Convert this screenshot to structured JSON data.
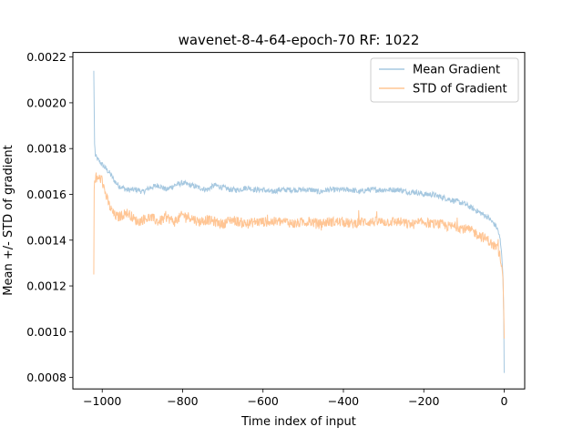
{
  "chart_data": {
    "type": "line",
    "title": "wavenet-8-4-64-epoch-70 RF: 1022",
    "xlabel": "Time index of input",
    "ylabel": "Mean +/- STD of gradient",
    "xlim": [
      -1073,
      51
    ],
    "ylim": [
      0.00075,
      0.00222
    ],
    "xticks": [
      -1000,
      -800,
      -600,
      -400,
      -200,
      0
    ],
    "xtick_labels": [
      "−1000",
      "−800",
      "−600",
      "−400",
      "−200",
      "0"
    ],
    "yticks": [
      0.0008,
      0.001,
      0.0012,
      0.0014,
      0.0016,
      0.0018,
      0.002,
      0.0022
    ],
    "ytick_labels": [
      "0.0008",
      "0.0010",
      "0.0012",
      "0.0014",
      "0.0016",
      "0.0018",
      "0.0020",
      "0.0022"
    ],
    "grid": false,
    "legend_position": "top-right",
    "series": [
      {
        "name": "Mean Gradient",
        "color": "#a6c8e0",
        "x": [
          -1021,
          -1019,
          -1017,
          -1014,
          -1010,
          -1005,
          -1000,
          -990,
          -980,
          -970,
          -960,
          -950,
          -940,
          -930,
          -920,
          -910,
          -900,
          -880,
          -860,
          -840,
          -820,
          -800,
          -780,
          -760,
          -740,
          -720,
          -700,
          -680,
          -660,
          -640,
          -620,
          -600,
          -580,
          -560,
          -540,
          -520,
          -500,
          -480,
          -460,
          -440,
          -420,
          -400,
          -380,
          -360,
          -340,
          -320,
          -300,
          -280,
          -260,
          -240,
          -220,
          -200,
          -180,
          -160,
          -140,
          -120,
          -100,
          -80,
          -60,
          -40,
          -30,
          -20,
          -15,
          -10,
          -6,
          -3,
          -1,
          0
        ],
        "y": [
          0.00214,
          0.00182,
          0.00177,
          0.00176,
          0.00175,
          0.00174,
          0.00173,
          0.00171,
          0.00169,
          0.00166,
          0.00164,
          0.00163,
          0.00162,
          0.00162,
          0.00162,
          0.00162,
          0.00161,
          0.00163,
          0.00164,
          0.00162,
          0.00164,
          0.00165,
          0.00164,
          0.00163,
          0.00162,
          0.00164,
          0.00163,
          0.00162,
          0.00162,
          0.00163,
          0.00162,
          0.00162,
          0.00161,
          0.00162,
          0.00162,
          0.00162,
          0.00162,
          0.00162,
          0.00161,
          0.00162,
          0.00162,
          0.00162,
          0.00162,
          0.00161,
          0.00162,
          0.00162,
          0.00162,
          0.00162,
          0.00162,
          0.00161,
          0.00161,
          0.0016,
          0.0016,
          0.00159,
          0.00158,
          0.00157,
          0.00156,
          0.00154,
          0.00152,
          0.0015,
          0.00148,
          0.00146,
          0.00144,
          0.0014,
          0.00133,
          0.00124,
          0.00105,
          0.00082
        ]
      },
      {
        "name": "STD of Gradient",
        "color": "#ffc594",
        "x": [
          -1021,
          -1020,
          -1019,
          -1017,
          -1014,
          -1010,
          -1005,
          -1000,
          -990,
          -980,
          -970,
          -960,
          -950,
          -940,
          -930,
          -920,
          -910,
          -900,
          -880,
          -860,
          -840,
          -820,
          -800,
          -780,
          -760,
          -740,
          -720,
          -700,
          -680,
          -660,
          -640,
          -620,
          -600,
          -580,
          -560,
          -540,
          -520,
          -500,
          -480,
          -460,
          -440,
          -420,
          -400,
          -380,
          -360,
          -340,
          -320,
          -300,
          -280,
          -260,
          -240,
          -220,
          -200,
          -180,
          -160,
          -140,
          -120,
          -100,
          -80,
          -60,
          -40,
          -30,
          -20,
          -15,
          -10,
          -6,
          -3,
          -1,
          0
        ],
        "y": [
          0.00125,
          0.00162,
          0.00166,
          0.00167,
          0.00166,
          0.00167,
          0.00167,
          0.00166,
          0.00159,
          0.00154,
          0.00151,
          0.0015,
          0.00151,
          0.00152,
          0.00151,
          0.00149,
          0.00148,
          0.00149,
          0.0015,
          0.00148,
          0.0015,
          0.00148,
          0.00151,
          0.0015,
          0.00148,
          0.00149,
          0.00148,
          0.00147,
          0.00149,
          0.00148,
          0.00147,
          0.00148,
          0.00148,
          0.00148,
          0.00148,
          0.00148,
          0.00147,
          0.00148,
          0.00148,
          0.00147,
          0.00148,
          0.00148,
          0.00148,
          0.00147,
          0.00148,
          0.00148,
          0.00148,
          0.00148,
          0.00148,
          0.00148,
          0.00147,
          0.00147,
          0.00148,
          0.00147,
          0.00147,
          0.00146,
          0.00146,
          0.00145,
          0.00144,
          0.00142,
          0.0014,
          0.00138,
          0.00137,
          0.00136,
          0.00133,
          0.00129,
          0.00123,
          0.00108,
          0.00097
        ]
      }
    ]
  }
}
